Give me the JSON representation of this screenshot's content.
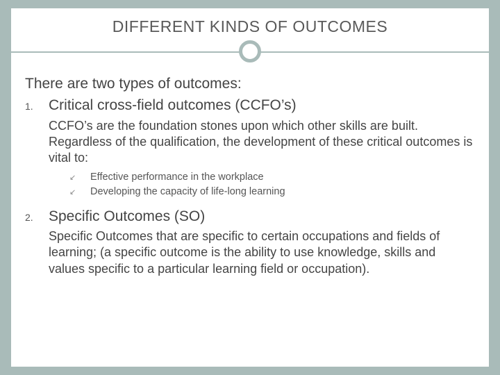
{
  "colors": {
    "page_bg": "#a9bbb9",
    "panel_bg": "#ffffff",
    "title_color": "#595959",
    "body_color": "#444444",
    "rule_color": "#a9bbb9",
    "bullet_mark": "↙"
  },
  "title": "DIFFERENT KINDS OF OUTCOMES",
  "intro": "There are two types of outcomes:",
  "items": [
    {
      "num": "1.",
      "heading": "Critical cross-field outcomes (CCFO’s)",
      "desc": "CCFO’s are the foundation stones upon which other skills are built.  Regardless of the qualification, the development of these critical outcomes is vital to:",
      "bullets": [
        "Effective performance in the workplace",
        "Developing the capacity of life-long learning"
      ]
    },
    {
      "num": "2.",
      "heading": "Specific Outcomes (SO)",
      "desc": "Specific Outcomes that are specific to certain occupations and fields of learning; (a specific outcome is the ability to use knowledge, skills and values specific to a particular learning field or occupation)."
    }
  ]
}
